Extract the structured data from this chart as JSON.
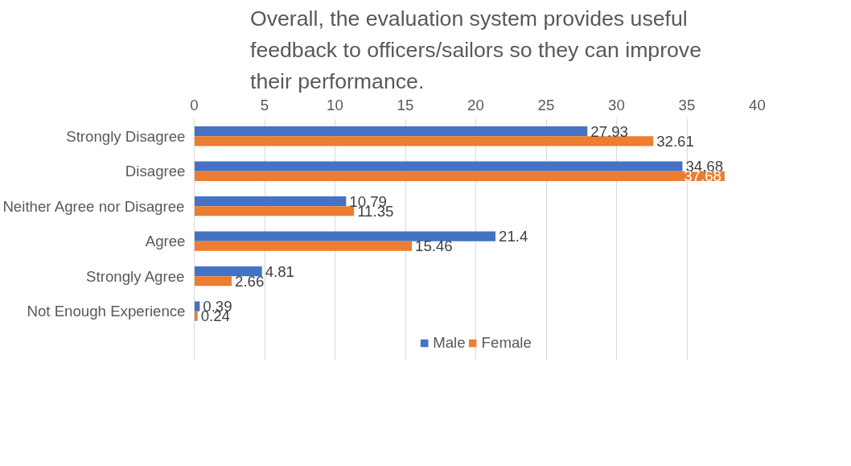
{
  "chart_data": {
    "type": "bar",
    "orientation": "horizontal",
    "title": "Overall, the evaluation system provides useful feedback to officers/sailors so they can improve their performance.",
    "categories": [
      "Strongly Disagree",
      "Disagree",
      "Neither Agree nor Disagree",
      "Agree",
      "Strongly Agree",
      "Not Enough Experience"
    ],
    "series": [
      {
        "name": "Male",
        "color": "#4472c4",
        "values": [
          27.93,
          34.68,
          10.79,
          21.4,
          4.81,
          0.39
        ]
      },
      {
        "name": "Female",
        "color": "#ed7d31",
        "values": [
          32.61,
          37.68,
          11.35,
          15.46,
          2.66,
          0.24
        ]
      }
    ],
    "xlim": [
      0,
      40
    ],
    "xticks": [
      0,
      5,
      10,
      15,
      20,
      25,
      30,
      35,
      40
    ],
    "grid": "x",
    "legend": "bottom",
    "data_labels": true
  }
}
